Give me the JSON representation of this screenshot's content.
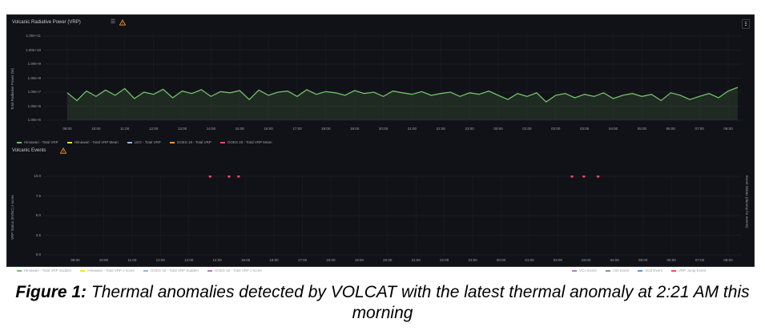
{
  "panels": {
    "vrp": {
      "title": "Volcanic Radiative Power (VRP)",
      "y_axis_title": "Total Radiative Power (W)",
      "y_ticks": [
        "1.00e+11",
        "1.00e+10",
        "1.00e+9",
        "1.00e+8",
        "1.00e+7",
        "1.00e+6",
        "1.00e+5"
      ],
      "x_ticks": [
        "09:00",
        "10:00",
        "11:00",
        "12:00",
        "13:00",
        "14:00",
        "15:00",
        "16:00",
        "17:00",
        "18:00",
        "19:00",
        "20:00",
        "21:00",
        "22:00",
        "23:00",
        "00:00",
        "01:00",
        "02:00",
        "03:00",
        "04:00",
        "05:00",
        "06:00",
        "07:00",
        "08:00"
      ],
      "legend": [
        {
          "label": "Himawari - Total VRP",
          "color": "#73bf69"
        },
        {
          "label": "Himawari - Total VRP Mean",
          "color": "#fade2a"
        },
        {
          "label": "LEO - Total VRP",
          "color": "#8ab8ff"
        },
        {
          "label": "GOES 18 - Total VRP",
          "color": "#ff9830"
        },
        {
          "label": "GOES 18 - Total VRP Mean",
          "color": "#f2495c"
        }
      ],
      "line_color": "#73bf69"
    },
    "events": {
      "title": "Volcanic Events",
      "y_axis_title": "VRP Status (EVNC) z-score",
      "right_axis_title": "Event Status (dummy for events)",
      "y_ticks": [
        "10.0",
        "7.5",
        "5.0",
        "2.5",
        "0.0"
      ],
      "x_ticks": [
        "09:00",
        "10:00",
        "11:00",
        "12:00",
        "13:00",
        "14:00",
        "15:00",
        "16:00",
        "17:00",
        "18:00",
        "19:00",
        "20:00",
        "21:00",
        "22:00",
        "23:00",
        "00:00",
        "01:00",
        "02:00",
        "03:00",
        "04:00",
        "05:00",
        "06:00",
        "07:00",
        "08:00"
      ],
      "legend_left": [
        {
          "label": "Himawari - Total VRP Sudden",
          "color": "#73bf69"
        },
        {
          "label": "Himawari - Total VRP z-score",
          "color": "#fade2a"
        },
        {
          "label": "GOES 18 - Total VRP Sudden",
          "color": "#8ab8ff"
        },
        {
          "label": "GOES 18 - Total VRP z-score",
          "color": "#b877d9"
        }
      ],
      "legend_right": [
        {
          "label": "VCA Event",
          "color": "#b877d9"
        },
        {
          "label": "Ash Event",
          "color": "#8e8e8e"
        },
        {
          "label": "SO2 Event",
          "color": "#5794f2"
        },
        {
          "label": "VRP Jump Event",
          "color": "#f2495c"
        }
      ],
      "marker_color": "#f2495c"
    }
  },
  "chart_data": [
    {
      "type": "line",
      "title": "Volcanic Radiative Power (VRP)",
      "ylabel": "Total Radiative Power (W)",
      "yscale": "log",
      "ylim": [
        100000,
        100000000000
      ],
      "x": [
        "09:00",
        "09:20",
        "09:40",
        "10:00",
        "10:20",
        "10:40",
        "11:00",
        "11:20",
        "11:40",
        "12:00",
        "12:20",
        "12:40",
        "13:00",
        "13:20",
        "13:40",
        "14:00",
        "14:20",
        "14:40",
        "15:00",
        "15:20",
        "15:40",
        "16:00",
        "16:20",
        "16:40",
        "17:00",
        "17:20",
        "17:40",
        "18:00",
        "18:20",
        "18:40",
        "19:00",
        "19:20",
        "19:40",
        "20:00",
        "20:20",
        "20:40",
        "21:00",
        "21:20",
        "21:40",
        "22:00",
        "22:20",
        "22:40",
        "23:00",
        "23:20",
        "23:40",
        "00:00",
        "00:20",
        "00:40",
        "01:00",
        "01:20",
        "01:40",
        "02:00",
        "02:20",
        "02:40",
        "03:00",
        "03:20",
        "03:40",
        "04:00",
        "04:20",
        "04:40",
        "05:00",
        "05:20",
        "05:40",
        "06:00",
        "06:20",
        "06:40",
        "07:00",
        "07:20",
        "07:40",
        "08:00",
        "08:20"
      ],
      "series": [
        {
          "name": "Himawari - Total VRP",
          "values": [
            9000000,
            2500000,
            12000000,
            5000000,
            14000000,
            6000000,
            18000000,
            3500000,
            10000000,
            7000000,
            16000000,
            4000000,
            12000000,
            8000000,
            15000000,
            5000000,
            11000000,
            9000000,
            13000000,
            3000000,
            14000000,
            6000000,
            10000000,
            12000000,
            5000000,
            15000000,
            7000000,
            11000000,
            9000000,
            6000000,
            13000000,
            8000000,
            10000000,
            5000000,
            12000000,
            9000000,
            7000000,
            11000000,
            6000000,
            8000000,
            10000000,
            5000000,
            9000000,
            7000000,
            12000000,
            6000000,
            3000000,
            8000000,
            5000000,
            9000000,
            2000000,
            6000000,
            8000000,
            4000000,
            7000000,
            5000000,
            9000000,
            3500000,
            6000000,
            8000000,
            5000000,
            7000000,
            2500000,
            9000000,
            6000000,
            3000000,
            5000000,
            8000000,
            4000000,
            12000000,
            22000000
          ]
        }
      ]
    },
    {
      "type": "scatter",
      "title": "Volcanic Events",
      "ylabel": "VRP Status (EVNC) z-score",
      "ylim": [
        0,
        10
      ],
      "x": [
        "13:45",
        "14:25",
        "14:45",
        "02:30",
        "02:55",
        "03:25"
      ],
      "series": [
        {
          "name": "VRP Jump Event",
          "values": [
            10,
            10,
            10,
            10,
            10,
            10
          ]
        }
      ]
    }
  ],
  "caption": {
    "label": "Figure 1:",
    "text": " Thermal anomalies detected by VOLCAT with the latest thermal anomaly at 2:21 AM this morning"
  }
}
